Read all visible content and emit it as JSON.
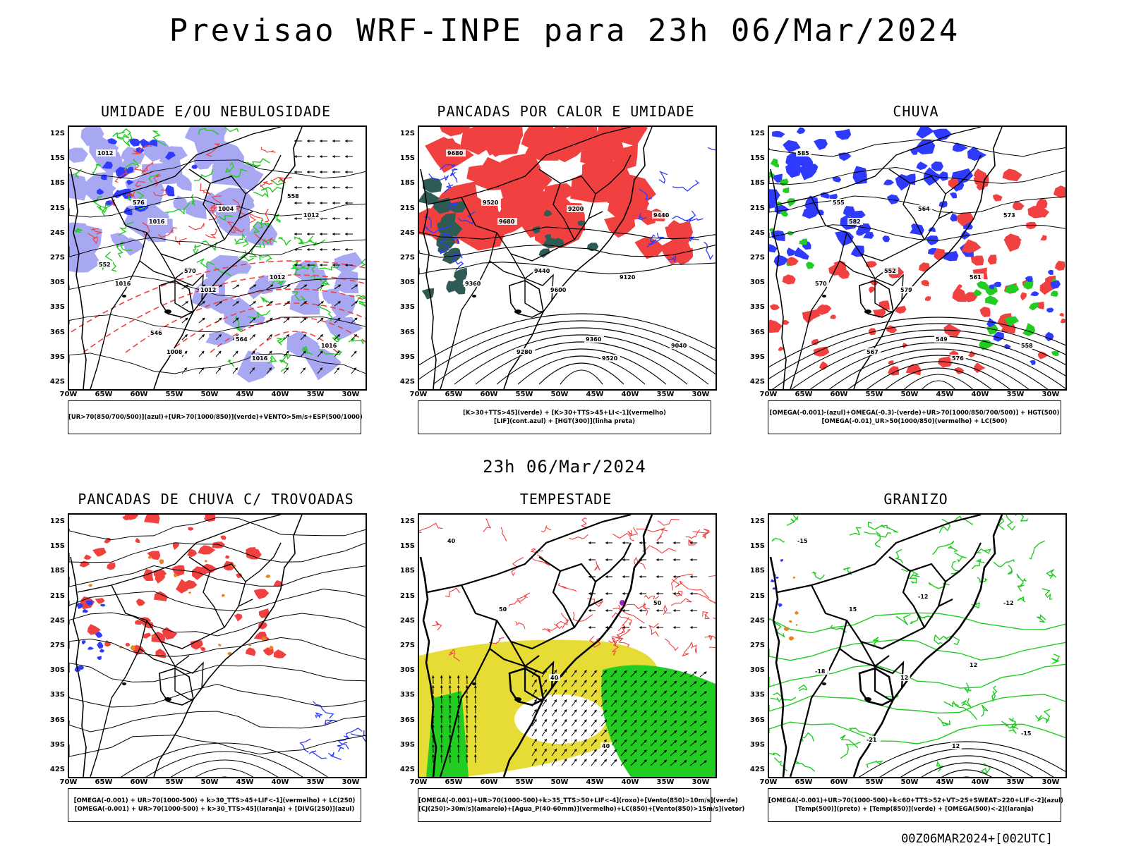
{
  "title": "Previsao WRF-INPE  para 23h 06/Mar/2024",
  "mid_date": "23h 06/Mar/2024",
  "footer": "00Z06MAR2024+[002UTC]",
  "lat_labels": [
    "12S",
    "15S",
    "18S",
    "21S",
    "24S",
    "27S",
    "30S",
    "33S",
    "36S",
    "39S",
    "42S"
  ],
  "lon_labels": [
    "70W",
    "65W",
    "60W",
    "55W",
    "50W",
    "45W",
    "40W",
    "35W",
    "30W"
  ],
  "colors": {
    "blue": "#2e3bff",
    "lavender": "#a8a8f2",
    "green": "#22cc22",
    "red": "#f04040",
    "darkteal": "#2f5b55",
    "yellow": "#e6dc35",
    "orange": "#e8841c",
    "purple": "#a020c0"
  },
  "panels": [
    {
      "title": "UMIDADE E/OU NEBULOSIDADE",
      "legend": [
        "[UR>70(850/700/500)](azul)+[UR>70(1000/850)](verde)+VENTO>5m/s+ESP(500/1000)"
      ],
      "contour_labels": [
        "1012",
        "1016",
        "1012",
        "1016",
        "1012",
        "1016",
        "1008",
        "1004",
        "1012",
        "1016",
        "576",
        "570",
        "564",
        "558",
        "552",
        "546"
      ]
    },
    {
      "title": "PANCADAS POR CALOR E UMIDADE",
      "legend": [
        "[K>30+TTS>45](verde) + [K>30+TTS>45+LI<-1](vermelho)",
        "[LIF](cont.azul) + [HGT(300)](linha preta)"
      ],
      "contour_labels": [
        "9680",
        "9680",
        "9600",
        "9520",
        "9440",
        "9360",
        "9280",
        "9200",
        "9120",
        "9040",
        "9520",
        "9440",
        "9360"
      ]
    },
    {
      "title": "CHUVA",
      "legend": [
        "[OMEGA(-0.001)-(azul)+OMEGA(-0.3)-(verde)+UR>70(1000/850/700/500)] + HGT(500)",
        "[OMEGA(-0.01)_UR>50(1000/850)(vermelho) + LC(500)"
      ],
      "contour_labels": [
        "585",
        "582",
        "579",
        "576",
        "573",
        "570",
        "567",
        "564",
        "561",
        "558",
        "555",
        "552",
        "549"
      ]
    },
    {
      "title": "PANCADAS DE CHUVA C/ TROVOADAS",
      "legend": [
        "[OMEGA(-0.001) + UR>70(1000-500) + k>30_TTS>45+LIF<-1](vermelho) + LC(250)",
        "[OMEGA(-0.001) + UR>70(1000-500) + k>30_TTS>45](laranja) + [DIVG(250)](azul)"
      ],
      "contour_labels": []
    },
    {
      "title": "TEMPESTADE",
      "legend": [
        "[OMEGA(-0.001)+UR>70(1000-500)+k>35_TTS>50+LIF<-4](roxo)+[Vento(850)>10m/s](verde)",
        "[CJ(250)>30m/s](amarelo)+[Agua_P(40-60mm)](vermelho)+LC(850)+[Vento(850)>15m/s](vetor)"
      ],
      "contour_labels": [
        "40",
        "50",
        "40",
        "40",
        "50"
      ]
    },
    {
      "title": "GRANIZO",
      "legend": [
        "[OMEGA(-0.001)+UR>70(1000-500)+k<60+TTS>52+VT>25+SWEAT>220+LIF<-2](azul)",
        "[Temp(500)](preto) + [Temp(850)](verde) + [OMEGA(500)<-2](laranja)"
      ],
      "contour_labels": [
        "-15",
        "15",
        "12",
        "12",
        "-12",
        "-18",
        "-21",
        "-12",
        "12",
        "-15"
      ]
    }
  ]
}
